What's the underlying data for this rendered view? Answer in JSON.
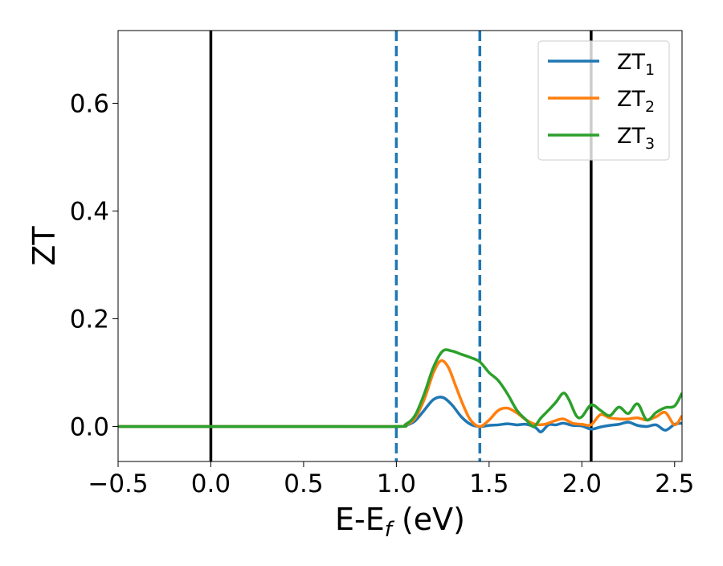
{
  "chart_data": {
    "type": "line",
    "title": "",
    "xlabel": "E-E",
    "xlabel_subscript": "f",
    "xlabel_unit": " (eV)",
    "ylabel": "ZT",
    "xlim": [
      -0.5,
      2.54
    ],
    "ylim": [
      -0.065,
      0.735
    ],
    "xticks": [
      -0.5,
      0.0,
      0.5,
      1.0,
      1.5,
      2.0,
      2.5
    ],
    "xtick_labels": [
      "−0.5",
      "0.0",
      "0.5",
      "1.0",
      "1.5",
      "2.0",
      "2.5"
    ],
    "yticks": [
      0.0,
      0.2,
      0.4,
      0.6
    ],
    "ytick_labels": [
      "0.0",
      "0.2",
      "0.4",
      "0.6"
    ],
    "grid": false,
    "legend_position": "top-right",
    "vertical_lines": [
      {
        "x": 0.0,
        "style": "solid",
        "color": "#000000"
      },
      {
        "x": 2.05,
        "style": "solid",
        "color": "#000000"
      },
      {
        "x": 1.0,
        "style": "dashed",
        "color": "#1f77b4"
      },
      {
        "x": 1.45,
        "style": "dashed",
        "color": "#1f77b4"
      }
    ],
    "series": [
      {
        "name": "ZT",
        "subscript": "1",
        "color": "#1f77b4",
        "x": [
          -0.5,
          0.0,
          0.5,
          1.0,
          1.05,
          1.1,
          1.15,
          1.2,
          1.25,
          1.3,
          1.35,
          1.4,
          1.45,
          1.5,
          1.55,
          1.6,
          1.65,
          1.7,
          1.75,
          1.78,
          1.82,
          1.86,
          1.9,
          1.95,
          2.0,
          2.05,
          2.1,
          2.15,
          2.2,
          2.25,
          2.3,
          2.35,
          2.4,
          2.45,
          2.5,
          2.54
        ],
        "y": [
          0.0,
          0.0,
          0.0,
          0.0,
          0.002,
          0.01,
          0.03,
          0.05,
          0.054,
          0.04,
          0.018,
          0.004,
          0.0,
          0.002,
          0.003,
          0.005,
          0.003,
          0.004,
          -0.002,
          -0.01,
          0.003,
          0.003,
          0.006,
          0.002,
          0.001,
          -0.005,
          -0.001,
          0.002,
          0.004,
          0.008,
          0.002,
          0.0,
          0.003,
          -0.007,
          0.004,
          0.006
        ]
      },
      {
        "name": "ZT",
        "subscript": "2",
        "color": "#ff7f0e",
        "x": [
          -0.5,
          0.0,
          0.5,
          1.0,
          1.05,
          1.1,
          1.15,
          1.2,
          1.24,
          1.28,
          1.32,
          1.36,
          1.4,
          1.45,
          1.5,
          1.55,
          1.6,
          1.65,
          1.7,
          1.75,
          1.8,
          1.85,
          1.9,
          1.95,
          2.0,
          2.05,
          2.1,
          2.15,
          2.2,
          2.25,
          2.3,
          2.35,
          2.4,
          2.45,
          2.5,
          2.54
        ],
        "y": [
          0.0,
          0.0,
          0.0,
          0.0,
          0.003,
          0.015,
          0.05,
          0.1,
          0.122,
          0.11,
          0.075,
          0.04,
          0.012,
          0.0,
          0.012,
          0.03,
          0.034,
          0.025,
          0.012,
          0.004,
          0.004,
          0.01,
          0.014,
          0.006,
          0.004,
          0.003,
          0.022,
          0.016,
          0.014,
          0.014,
          0.016,
          0.012,
          0.018,
          0.026,
          0.003,
          0.02
        ]
      },
      {
        "name": "ZT",
        "subscript": "3",
        "color": "#2ca02c",
        "x": [
          -0.5,
          0.0,
          0.5,
          1.0,
          1.05,
          1.1,
          1.15,
          1.2,
          1.25,
          1.3,
          1.35,
          1.4,
          1.45,
          1.5,
          1.55,
          1.6,
          1.65,
          1.7,
          1.74,
          1.78,
          1.82,
          1.86,
          1.9,
          1.93,
          1.97,
          2.0,
          2.05,
          2.1,
          2.15,
          2.2,
          2.25,
          2.3,
          2.35,
          2.4,
          2.45,
          2.5,
          2.54
        ],
        "y": [
          0.0,
          0.0,
          0.0,
          0.0,
          0.004,
          0.02,
          0.06,
          0.11,
          0.14,
          0.14,
          0.134,
          0.128,
          0.12,
          0.1,
          0.085,
          0.06,
          0.03,
          0.012,
          0.0,
          0.016,
          0.03,
          0.045,
          0.062,
          0.05,
          0.02,
          0.018,
          0.04,
          0.03,
          0.02,
          0.036,
          0.024,
          0.042,
          0.012,
          0.026,
          0.035,
          0.038,
          0.062
        ]
      }
    ]
  }
}
